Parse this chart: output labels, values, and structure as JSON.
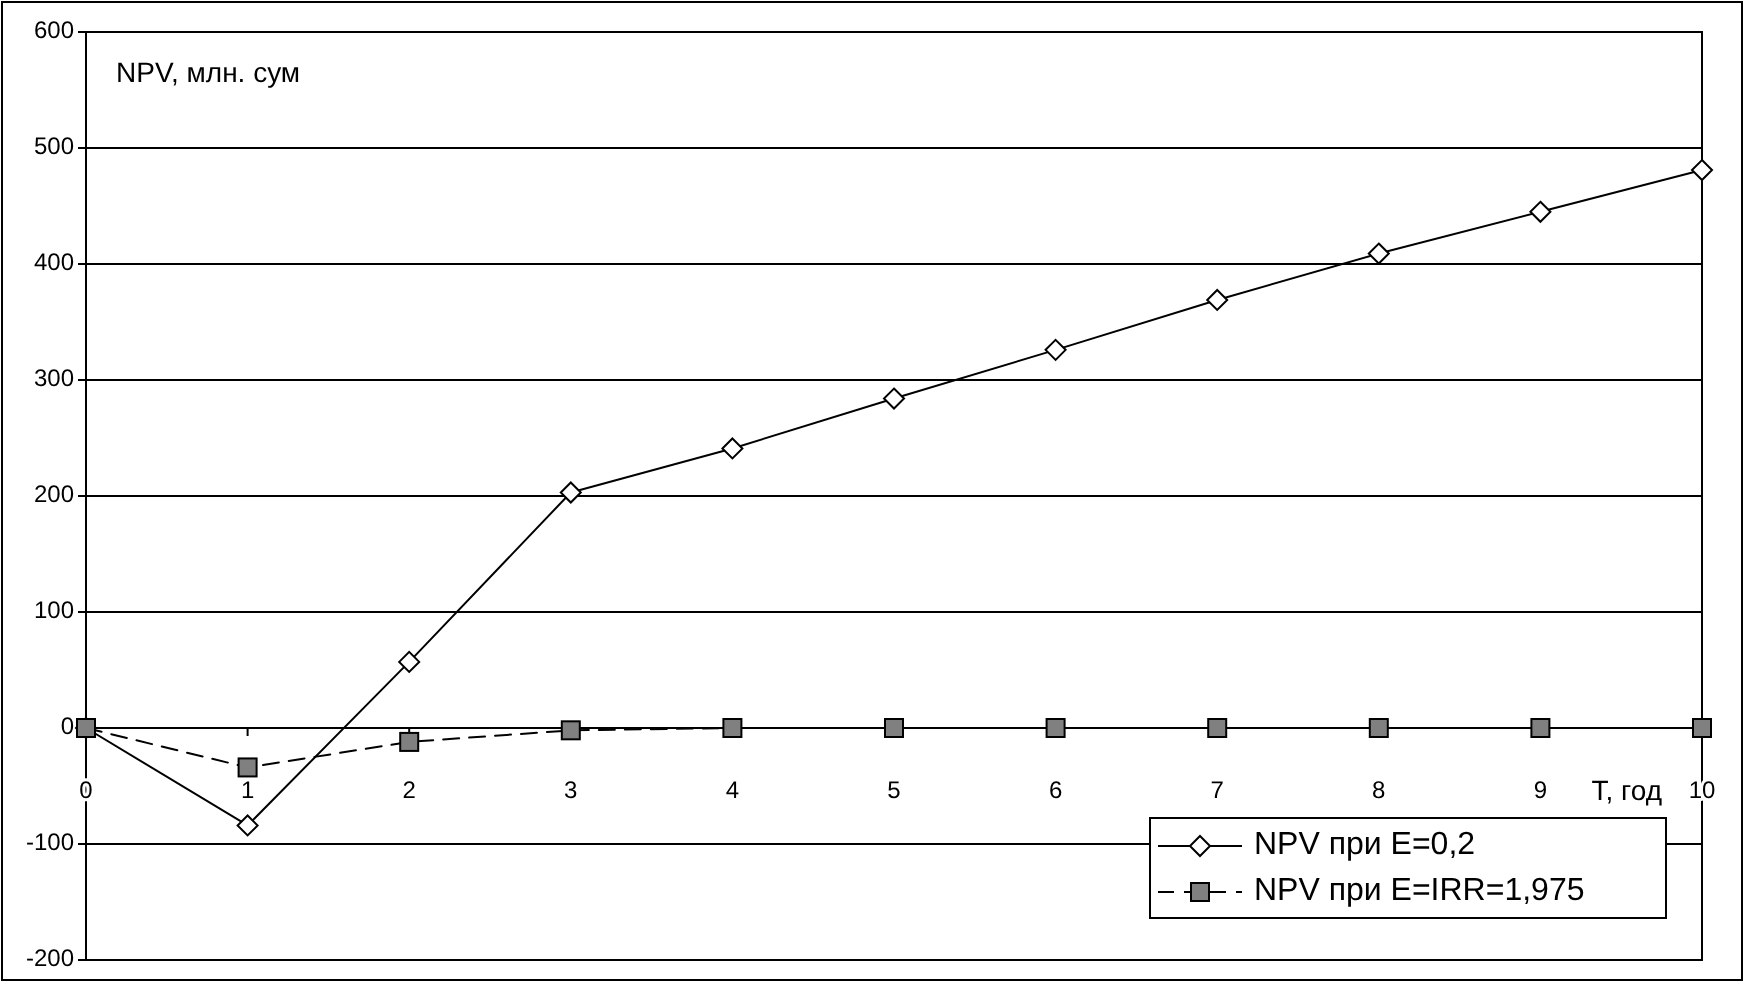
{
  "chart_data": {
    "type": "line",
    "ylabel": "NPV, млн. сум",
    "xlabel": "T, год",
    "x": [
      0,
      1,
      2,
      3,
      4,
      5,
      6,
      7,
      8,
      9,
      10
    ],
    "series": [
      {
        "name": "NPV при E=0,2",
        "color": "#000000",
        "marker": "diamond",
        "line_style": "solid",
        "values": [
          0,
          -84,
          57,
          203,
          241,
          284,
          326,
          369,
          409,
          445,
          481
        ]
      },
      {
        "name": "NPV при E=IRR=1,975",
        "color": "#000000",
        "marker": "square",
        "line_style": "dashed",
        "values": [
          0,
          -34,
          -12,
          -2,
          0,
          0,
          0,
          0,
          0,
          0,
          0
        ]
      }
    ],
    "xlim": [
      0,
      10
    ],
    "xticks": [
      0,
      1,
      2,
      3,
      4,
      5,
      6,
      7,
      8,
      9,
      10
    ],
    "ylim": [
      -200,
      600
    ],
    "yticks": [
      -200,
      -100,
      0,
      100,
      200,
      300,
      400,
      500,
      600
    ],
    "grid": "y",
    "legend": "bottom right"
  }
}
